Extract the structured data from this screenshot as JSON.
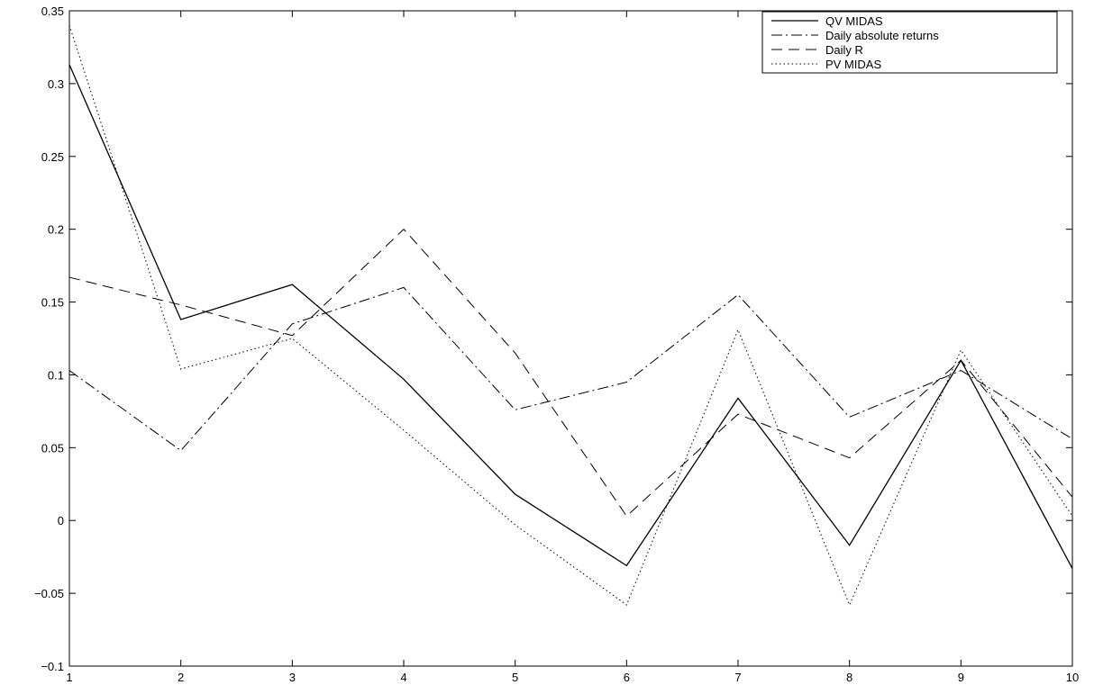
{
  "chart_data": {
    "type": "line",
    "title": "",
    "xlabel": "",
    "ylabel": "",
    "xlim": [
      1,
      10
    ],
    "ylim": [
      -0.1,
      0.35
    ],
    "grid": false,
    "legend_position": "top-right",
    "x": [
      1,
      2,
      3,
      4,
      5,
      6,
      7,
      8,
      9,
      10
    ],
    "x_ticks": [
      "1",
      "2",
      "3",
      "4",
      "5",
      "6",
      "7",
      "8",
      "9",
      "10"
    ],
    "y_ticks": [
      "−0.1",
      "−0.05",
      "0",
      "0.05",
      "0.1",
      "0.15",
      "0.2",
      "0.25",
      "0.3",
      "0.35"
    ],
    "y_tick_values": [
      -0.1,
      -0.05,
      0,
      0.05,
      0.1,
      0.15,
      0.2,
      0.25,
      0.3,
      0.35
    ],
    "series": [
      {
        "name": "QV MIDAS",
        "style": "solid",
        "color": "#000000",
        "values": [
          0.313,
          0.138,
          0.162,
          0.097,
          0.018,
          -0.031,
          0.084,
          -0.017,
          0.11,
          -0.033
        ]
      },
      {
        "name": "Daily absolute returns",
        "style": "dashdot",
        "color": "#000000",
        "values": [
          0.103,
          0.048,
          0.135,
          0.16,
          0.076,
          0.095,
          0.155,
          0.071,
          0.103,
          0.056
        ]
      },
      {
        "name": "Daily R",
        "style": "dashed",
        "color": "#000000",
        "values": [
          0.167,
          0.148,
          0.127,
          0.2,
          0.115,
          0.003,
          0.073,
          0.043,
          0.11,
          0.016
        ]
      },
      {
        "name": "PV MIDAS",
        "style": "dotted",
        "color": "#000000",
        "values": [
          0.34,
          0.104,
          0.125,
          0.062,
          -0.003,
          -0.058,
          0.131,
          -0.058,
          0.117,
          0.003
        ]
      }
    ]
  }
}
